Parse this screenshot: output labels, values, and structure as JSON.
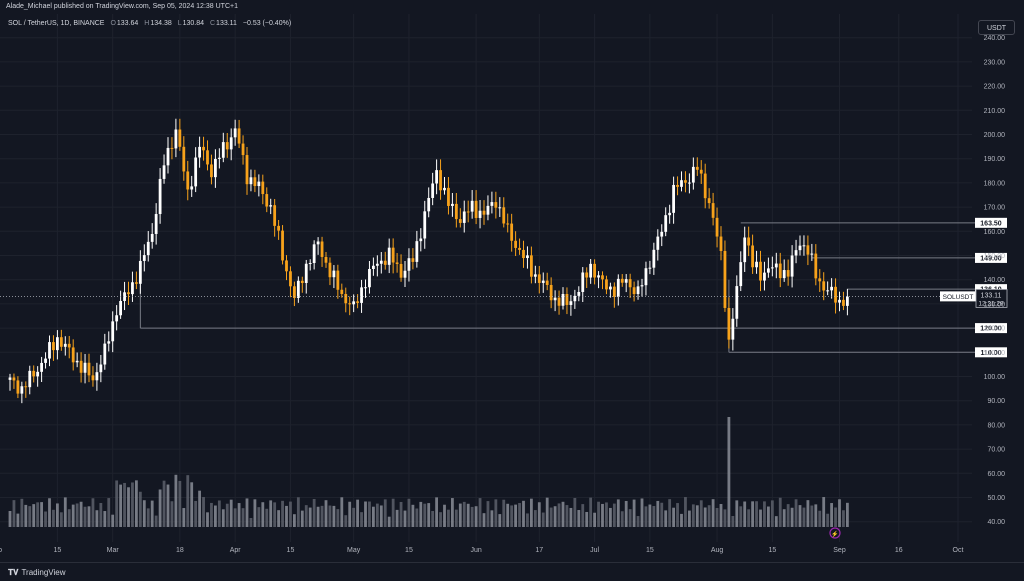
{
  "header": {
    "published_line": "Alade_Michael published on TradingView.com, Sep 05, 2024 12:38 UTC+1"
  },
  "symbol": {
    "name": "SOL / TetherUS, 1D, BINANCE",
    "open_label": "O",
    "open": "133.64",
    "high_label": "H",
    "high": "134.38",
    "low_label": "L",
    "low": "130.84",
    "close_label": "C",
    "close": "133.11",
    "change": "−0.53 (−0.40%)"
  },
  "currency_button": "USDT",
  "price_axis": [
    "240.00",
    "230.00",
    "220.00",
    "210.00",
    "200.00",
    "190.00",
    "180.00",
    "170.00",
    "160.00",
    "150.00",
    "140.00",
    "130.00",
    "120.00",
    "110.00",
    "100.00",
    "90.00",
    "80.00",
    "70.00",
    "60.00",
    "50.00",
    "40.00"
  ],
  "time_axis": [
    {
      "label": "eb",
      "day": -3
    },
    {
      "label": "15",
      "day": 12
    },
    {
      "label": "Mar",
      "day": 26
    },
    {
      "label": "18",
      "day": 43
    },
    {
      "label": "Apr",
      "day": 57
    },
    {
      "label": "15",
      "day": 71
    },
    {
      "label": "May",
      "day": 87
    },
    {
      "label": "15",
      "day": 101
    },
    {
      "label": "Jun",
      "day": 118
    },
    {
      "label": "17",
      "day": 134
    },
    {
      "label": "Jul",
      "day": 148
    },
    {
      "label": "15",
      "day": 162
    },
    {
      "label": "Aug",
      "day": 179
    },
    {
      "label": "15",
      "day": 193
    },
    {
      "label": "Sep",
      "day": 210
    },
    {
      "label": "16",
      "day": 225
    },
    {
      "label": "Oct",
      "day": 240
    }
  ],
  "levels": [
    {
      "price": 163.5,
      "label": "163.50",
      "start_day": 185
    },
    {
      "price": 149.0,
      "label": "149.00",
      "start_day": 203
    },
    {
      "price": 136.1,
      "label": "136.10",
      "start_day": 212
    },
    {
      "price": 120.0,
      "label": "120.00",
      "start_day": 33
    },
    {
      "price": 110.0,
      "label": "110.00",
      "start_day": 182
    }
  ],
  "current_price": {
    "symbol": "SOLUSDT",
    "price": "133.11",
    "countdown": "12:21:29",
    "value": 133.11
  },
  "footer": {
    "brand": "TradingView"
  },
  "colors": {
    "up": "#ffffff",
    "down": "#f7a21b",
    "bg": "#131722",
    "grid": "#1e222d",
    "level": "#787b86"
  },
  "chart_data": {
    "type": "candlestick",
    "x_unit": "days since Feb 01 2024",
    "y_range": [
      36,
      246
    ],
    "candles": [
      [
        0,
        98
      ],
      [
        3,
        95
      ],
      [
        6,
        101
      ],
      [
        9,
        108
      ],
      [
        12,
        116
      ],
      [
        15,
        110
      ],
      [
        18,
        104
      ],
      [
        21,
        99
      ],
      [
        24,
        110
      ],
      [
        27,
        128
      ],
      [
        30,
        135
      ],
      [
        33,
        145
      ],
      [
        36,
        160
      ],
      [
        39,
        188
      ],
      [
        42,
        202
      ],
      [
        45,
        176
      ],
      [
        48,
        195
      ],
      [
        51,
        185
      ],
      [
        54,
        194
      ],
      [
        57,
        202
      ],
      [
        60,
        183
      ],
      [
        63,
        178
      ],
      [
        66,
        170
      ],
      [
        69,
        150
      ],
      [
        72,
        132
      ],
      [
        75,
        146
      ],
      [
        78,
        155
      ],
      [
        81,
        143
      ],
      [
        84,
        134
      ],
      [
        87,
        128
      ],
      [
        90,
        140
      ],
      [
        93,
        147
      ],
      [
        96,
        150
      ],
      [
        99,
        143
      ],
      [
        102,
        148
      ],
      [
        105,
        167
      ],
      [
        108,
        185
      ],
      [
        111,
        171
      ],
      [
        114,
        165
      ],
      [
        117,
        170
      ],
      [
        120,
        167
      ],
      [
        123,
        173
      ],
      [
        126,
        160
      ],
      [
        129,
        152
      ],
      [
        132,
        144
      ],
      [
        135,
        138
      ],
      [
        138,
        132
      ],
      [
        141,
        130
      ],
      [
        144,
        136
      ],
      [
        147,
        146
      ],
      [
        150,
        138
      ],
      [
        153,
        136
      ],
      [
        156,
        140
      ],
      [
        159,
        134
      ],
      [
        162,
        148
      ],
      [
        165,
        160
      ],
      [
        168,
        177
      ],
      [
        171,
        181
      ],
      [
        174,
        186
      ],
      [
        177,
        172
      ],
      [
        180,
        150
      ],
      [
        182,
        114
      ],
      [
        184,
        135
      ],
      [
        186,
        160
      ],
      [
        188,
        146
      ],
      [
        190,
        142
      ],
      [
        192,
        145
      ],
      [
        194,
        144
      ],
      [
        197,
        143
      ],
      [
        200,
        156
      ],
      [
        202,
        152
      ],
      [
        204,
        142
      ],
      [
        206,
        137
      ],
      [
        208,
        134
      ],
      [
        210,
        131
      ],
      [
        212,
        133
      ]
    ],
    "volume_axis_note": "volume histogram at bottom"
  }
}
